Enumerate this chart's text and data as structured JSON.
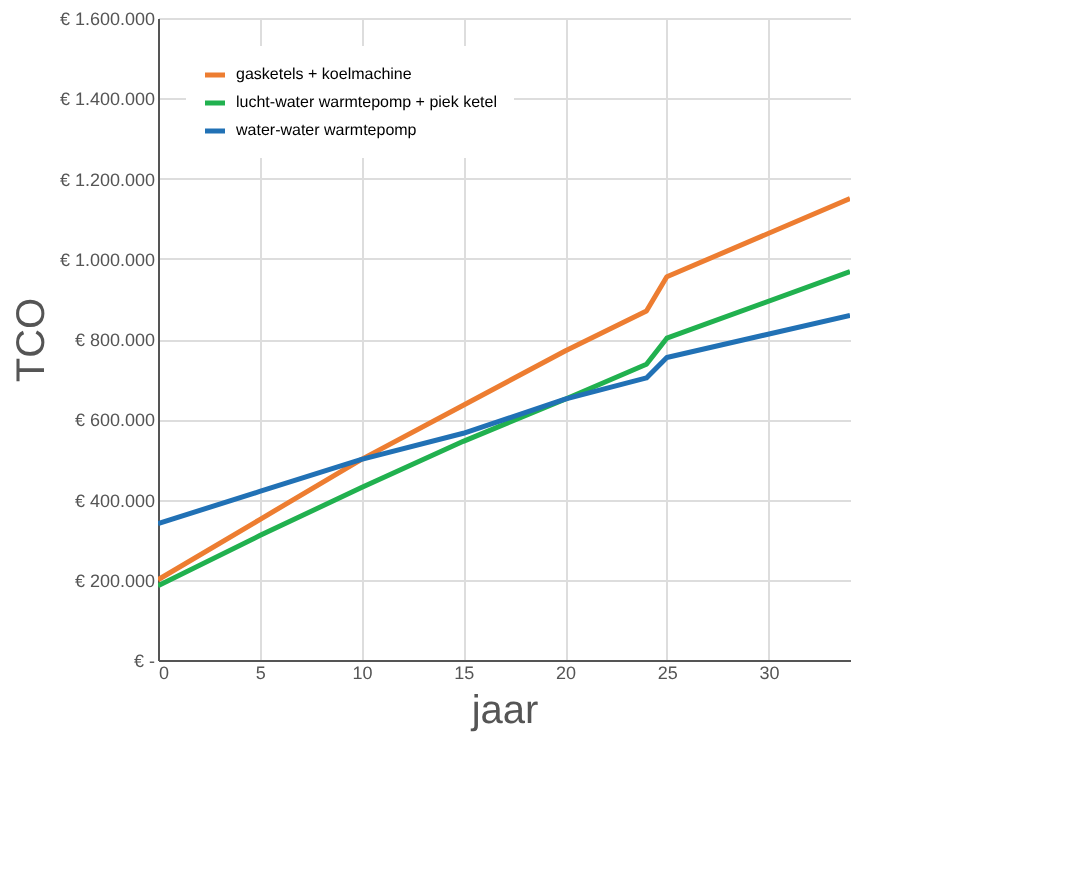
{
  "chart_data": {
    "type": "line",
    "xlabel": "jaar",
    "ylabel": "TCO",
    "xlim": [
      0,
      34
    ],
    "xticks": [
      0,
      5,
      10,
      15,
      20,
      25,
      30
    ],
    "ylim": [
      0,
      1600000
    ],
    "yticks": [
      {
        "value": 0,
        "label": "€ -"
      },
      {
        "value": 200000,
        "label": "€ 200.000"
      },
      {
        "value": 400000,
        "label": "€ 400.000"
      },
      {
        "value": 600000,
        "label": "€ 600.000"
      },
      {
        "value": 800000,
        "label": "€ 800.000"
      },
      {
        "value": 1000000,
        "label": "€ 1.000.000"
      },
      {
        "value": 1200000,
        "label": "€ 1.200.000"
      },
      {
        "value": 1400000,
        "label": "€ 1.400.000"
      },
      {
        "value": 1600000,
        "label": "€ 1.600.000"
      }
    ],
    "grid": true,
    "legend": "top left",
    "marker": "none",
    "line_style": "solid",
    "x": [
      0,
      5,
      10,
      15,
      20,
      24,
      25,
      34
    ],
    "series": [
      {
        "name": "gasketels + koelmachine",
        "color": "#ed7d31",
        "values": [
          200000,
          350000,
          500000,
          635000,
          770000,
          870000,
          955000,
          1150000
        ]
      },
      {
        "name": "lucht-water warmtepomp + piek ketel",
        "color": "#21b14f",
        "values": [
          185000,
          310000,
          430000,
          545000,
          650000,
          737000,
          802000,
          968000
        ]
      },
      {
        "name": "water-water warmtepomp",
        "color": "#2171b5",
        "values": [
          340000,
          420000,
          500000,
          565000,
          650000,
          703000,
          754000,
          859000
        ]
      }
    ]
  }
}
